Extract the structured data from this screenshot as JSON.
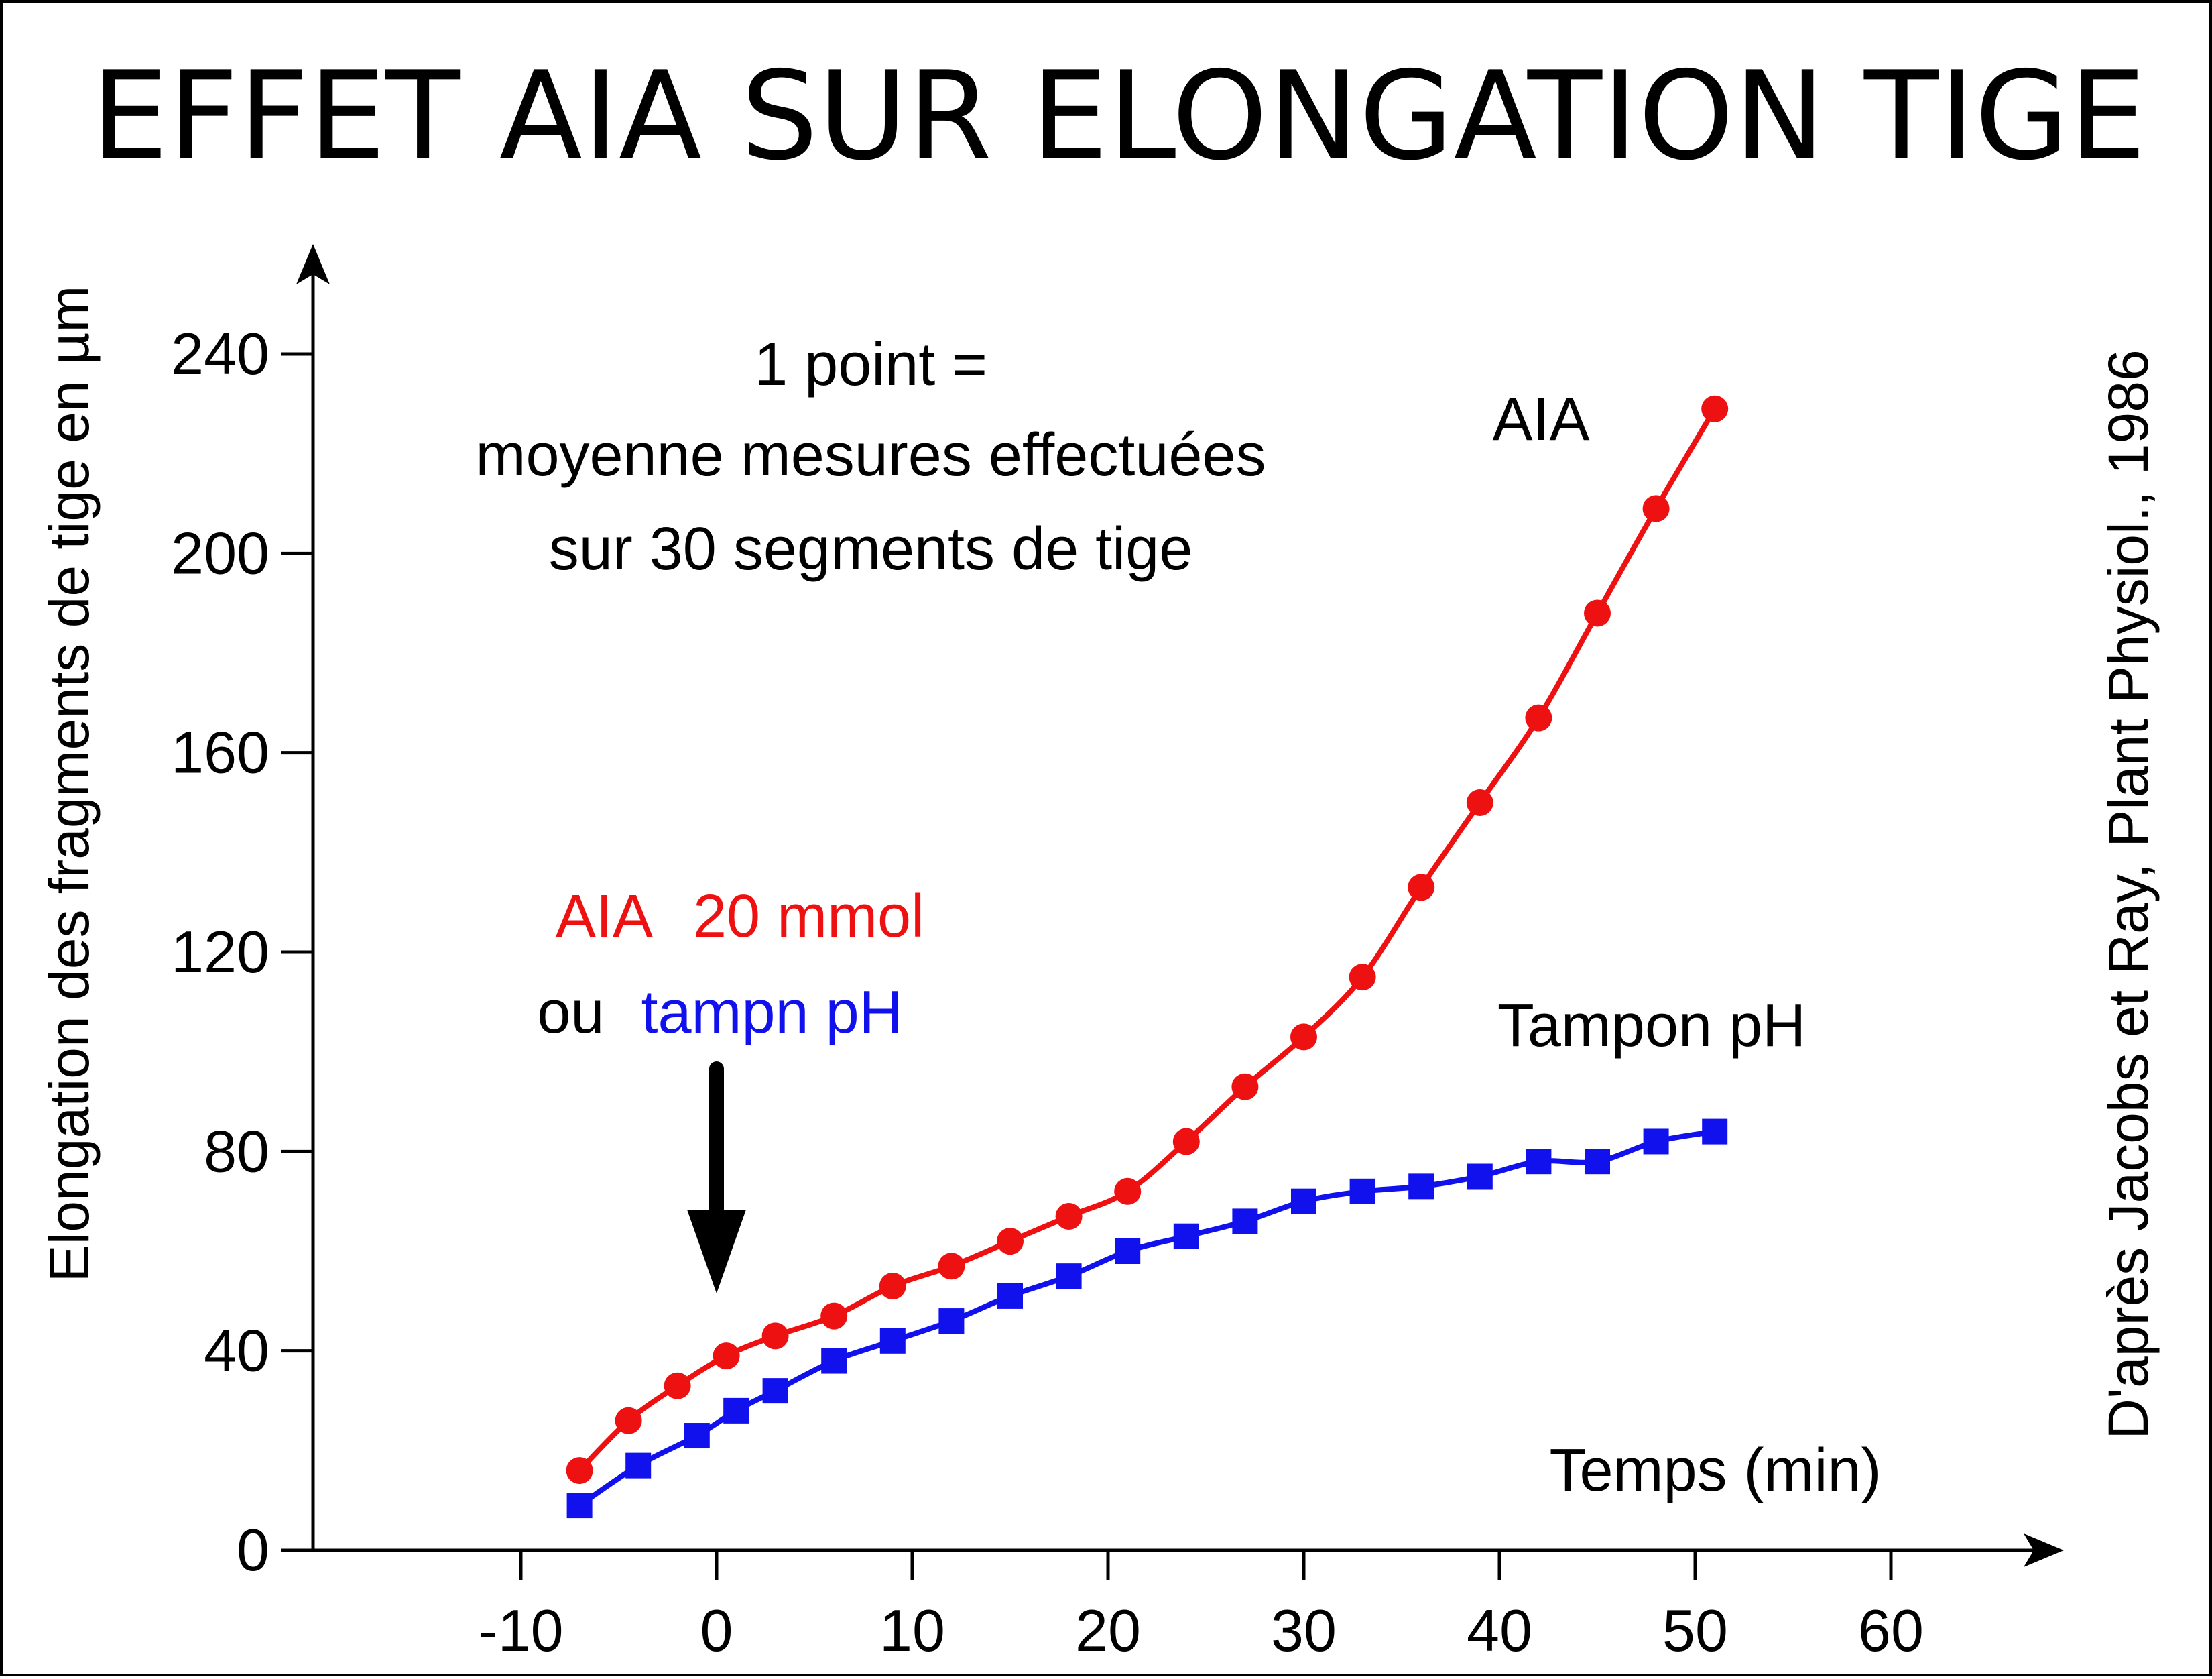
{
  "title": "EFFET AIA SUR ELONGATION TIGE",
  "note": {
    "line1": "1 point =",
    "line2": "moyenne mesures effectuées",
    "line3": "sur 30 segments de tige"
  },
  "treatment": {
    "aia_label": "AIA",
    "aia_conc": "20 mmol",
    "or_word": "ou",
    "buffer_label": "tampn pH"
  },
  "source": "D'après Jacobs et Ray, Plant Physiol., 1986",
  "colors": {
    "aia": "#ee1111",
    "buffer": "#1111ee",
    "axis": "#000000"
  },
  "chart_data": {
    "type": "line",
    "title": "EFFET AIA SUR ELONGATION TIGE",
    "xlabel": "Temps (min)",
    "ylabel": "Elongation des fragments de tige en µm",
    "xlim": [
      -20,
      68
    ],
    "ylim": [
      0,
      262
    ],
    "xticks": [
      -10,
      0,
      10,
      20,
      30,
      40,
      50,
      60
    ],
    "xtick_labels": [
      "-10",
      "0",
      "10",
      "20",
      "30",
      "40",
      "50",
      "60"
    ],
    "yticks": [
      0,
      40,
      80,
      120,
      160,
      200,
      240
    ],
    "ytick_labels": [
      "0",
      "40",
      "80",
      "120",
      "160",
      "200",
      "240"
    ],
    "grid": false,
    "legend": "inline labels",
    "annotation_arrow_x": 0,
    "series": [
      {
        "name": "AIA",
        "marker": "circle",
        "color": "#ee1111",
        "x": [
          -7,
          -4.5,
          -2,
          0.5,
          3,
          6,
          9,
          12,
          15,
          18,
          21,
          24,
          27,
          30,
          33,
          36,
          39,
          42,
          45,
          48,
          51
        ],
        "y": [
          16,
          26,
          33,
          39,
          43,
          47,
          53,
          57,
          62,
          67,
          72,
          82,
          93,
          103,
          115,
          133,
          150,
          167,
          188,
          209,
          229
        ]
      },
      {
        "name": "Tampon pH",
        "marker": "square",
        "color": "#1111ee",
        "x": [
          -7,
          -4,
          -1,
          1,
          3,
          6,
          9,
          12,
          15,
          18,
          21,
          24,
          27,
          30,
          33,
          36,
          39,
          42,
          45,
          48,
          51
        ],
        "y": [
          9,
          17,
          23,
          28,
          32,
          38,
          42,
          46,
          51,
          55,
          60,
          63,
          66,
          70,
          72,
          73,
          75,
          78,
          78,
          82,
          84
        ]
      }
    ]
  }
}
